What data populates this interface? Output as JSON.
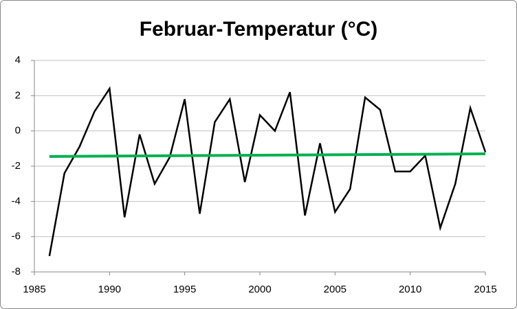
{
  "chart_data": {
    "type": "line",
    "title": "Februar-Temperatur (°C)",
    "xlim": [
      1985,
      2015
    ],
    "xticks": [
      1985,
      1990,
      1995,
      2000,
      2005,
      2010,
      2015
    ],
    "ylim": [
      -8,
      4
    ],
    "yticks": [
      -8,
      -6,
      -4,
      -2,
      0,
      2,
      4
    ],
    "grid": true,
    "series": [
      {
        "color": "#000000",
        "x": [
          1986,
          1987,
          1988,
          1989,
          1990,
          1991,
          1992,
          1993,
          1994,
          1995,
          1996,
          1997,
          1998,
          1999,
          2000,
          2001,
          2002,
          2003,
          2004,
          2005,
          2006,
          2007,
          2008,
          2009,
          2010,
          2011,
          2012,
          2013,
          2014,
          2015
        ],
        "values": [
          -7.1,
          -2.4,
          -0.9,
          1.1,
          2.4,
          -4.9,
          -0.2,
          -3.0,
          -1.5,
          1.8,
          -4.7,
          0.5,
          1.8,
          -2.9,
          0.9,
          0.0,
          2.2,
          -4.8,
          -0.7,
          -4.6,
          -3.3,
          1.9,
          1.2,
          -2.3,
          -2.3,
          -1.4,
          -5.5,
          -3.0,
          1.3,
          -1.2
        ]
      },
      {
        "color": "#00b050",
        "x": [
          1986,
          2015
        ],
        "values": [
          -1.45,
          -1.3
        ]
      }
    ]
  }
}
